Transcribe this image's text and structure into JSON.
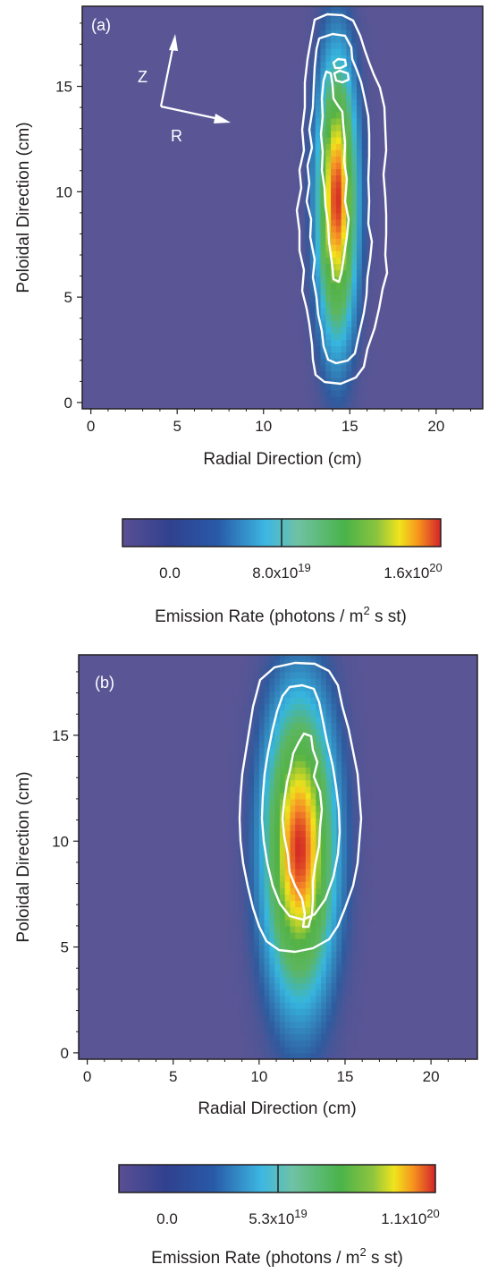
{
  "chart_data": [
    {
      "type": "heatmap",
      "panel_label": "(a)",
      "xlabel": "Radial Direction (cm)",
      "ylabel": "Poloidal Direction (cm)",
      "xlim": [
        -0.5,
        22.7
      ],
      "ylim": [
        -0.3,
        18.8
      ],
      "xticks": [
        "0",
        "5",
        "10",
        "15",
        "20"
      ],
      "yticks": [
        "0",
        "5",
        "10",
        "15"
      ],
      "direction_labels": {
        "z": "Z",
        "r": "R"
      },
      "emission_peak": {
        "x_center": 14.1,
        "y_center": 9.5,
        "x_width": 0.9,
        "y_width": 5.2,
        "max_rate": 1.6e+20
      },
      "contour_count": 3,
      "colorbar": {
        "label_main": "Emission Rate (photons / m",
        "label_sup": "2",
        "label_tail": " s st)",
        "min": 0.0,
        "mid": 8e+19,
        "max": 1.6e+20,
        "ticks": [
          {
            "mantissa": "0.0",
            "exponent": ""
          },
          {
            "mantissa": "8.0x10",
            "exponent": "19"
          },
          {
            "mantissa": "1.6x10",
            "exponent": "20"
          }
        ]
      }
    },
    {
      "type": "heatmap",
      "panel_label": "(b)",
      "xlabel": "Radial Direction (cm)",
      "ylabel": "Poloidal Direction (cm)",
      "xlim": [
        -0.5,
        22.7
      ],
      "ylim": [
        -0.3,
        18.8
      ],
      "xticks": [
        "0",
        "5",
        "10",
        "15",
        "20"
      ],
      "yticks": [
        "0",
        "5",
        "10",
        "15"
      ],
      "emission_peak": {
        "x_center": 12.2,
        "y_center": 9.5,
        "x_width": 1.6,
        "y_width": 5.5,
        "max_rate": 1.1e+20
      },
      "contour_count": 3,
      "colorbar": {
        "label_main": "Emission Rate (photons / m",
        "label_sup": "2",
        "label_tail": " s st)",
        "min": 0.0,
        "mid": 5.3e+19,
        "max": 1.1e+20,
        "ticks": [
          {
            "mantissa": "0.0",
            "exponent": ""
          },
          {
            "mantissa": "5.3x10",
            "exponent": "19"
          },
          {
            "mantissa": "1.1x10",
            "exponent": "20"
          }
        ]
      }
    }
  ],
  "colormap": [
    "#56508f",
    "#2f5a9e",
    "#37b6df",
    "#5db65f",
    "#52b246",
    "#f2e21c",
    "#f58a27",
    "#d42b25"
  ]
}
